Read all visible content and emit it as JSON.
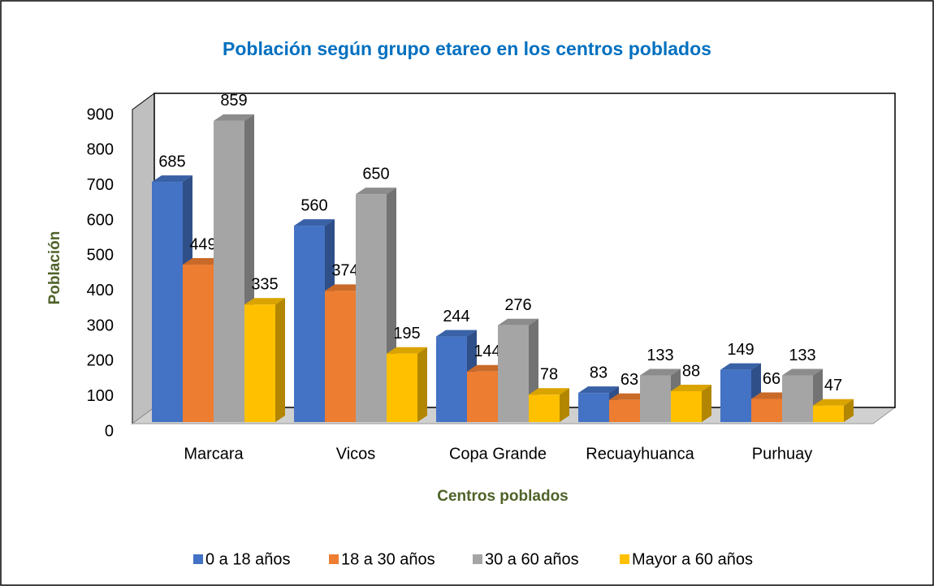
{
  "chart_data": {
    "type": "bar3d",
    "title": "Población según grupo etareo en los centros poblados",
    "x_label": "Centros poblados",
    "y_label": "Población",
    "categories": [
      "Marcara",
      "Vicos",
      "Copa Grande",
      "Recuayhuanca",
      "Purhuay"
    ],
    "series": [
      {
        "name": "0 a 18 años",
        "color": "#4472c4",
        "values": [
          685,
          560,
          244,
          83,
          149
        ]
      },
      {
        "name": "18 a 30 años",
        "color": "#ed7d31",
        "values": [
          449,
          374,
          144,
          63,
          66
        ]
      },
      {
        "name": "30 a 60 años",
        "color": "#a5a5a5",
        "values": [
          859,
          650,
          276,
          133,
          133
        ]
      },
      {
        "name": "Mayor a 60 años",
        "color": "#ffc000",
        "values": [
          335,
          195,
          78,
          88,
          47
        ]
      }
    ],
    "ylim": [
      0,
      900
    ],
    "yticks": [
      0,
      100,
      200,
      300,
      400,
      500,
      600,
      700,
      800,
      900
    ],
    "legend": "bottom"
  }
}
